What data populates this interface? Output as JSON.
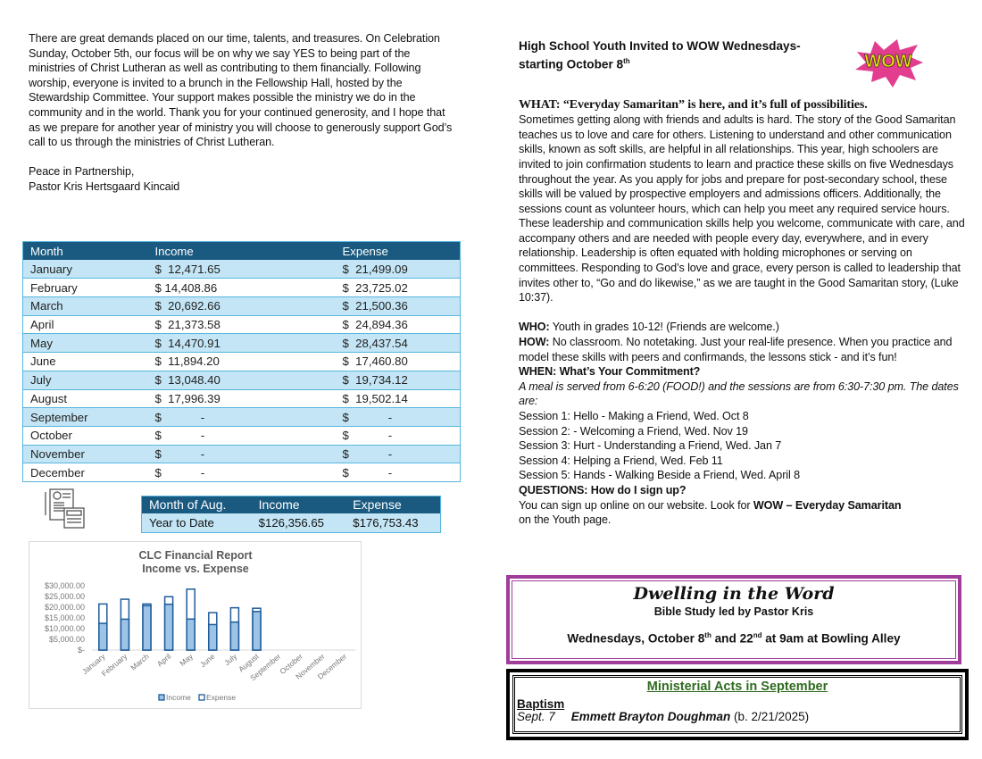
{
  "letter": {
    "para1": "There are great demands placed on our time, talents, and treasures. On Celebration Sunday, October 5th, our focus will be on why we say YES to being part of the ministries of Christ Lutheran as well as contributing to them financially.  Following worship, everyone is invited to a brunch in the Fellowship Hall, hosted by the Stewardship Committee. Your support makes possible the ministry we do in the community and in the world.  Thank you for your continued generosity, and I hope that as we prepare for another year of ministry you will choose to generously support God’s call to us through the ministries of Christ Lutheran.",
    "closing": "Peace in Partnership,",
    "signature": "Pastor Kris Hertsgaard Kincaid"
  },
  "finance_table": {
    "headers": [
      "Month",
      "Income",
      "Expense"
    ],
    "rows": [
      [
        "January",
        "$  12,471.65",
        "$  21,499.09"
      ],
      [
        "February",
        "$ 14,408.86",
        "$  23,725.02"
      ],
      [
        "March",
        "$  20,692.66",
        "$  21,500.36"
      ],
      [
        "April",
        "$  21,373.58",
        "$  24,894.36"
      ],
      [
        "May",
        "$  14,470.91",
        "$  28,437.54"
      ],
      [
        "June",
        "$  11,894.20",
        "$  17,460.80"
      ],
      [
        "July",
        "$  13,048.40",
        "$  19,734.12"
      ],
      [
        "August",
        "$  17,996.39",
        "$  19,502.14"
      ],
      [
        "September",
        "$            -",
        "$            -"
      ],
      [
        "October",
        "$            -",
        "$            -"
      ],
      [
        "November",
        "$            -",
        "$            -"
      ],
      [
        "December",
        "$            -",
        "$            -"
      ]
    ]
  },
  "ytd_table": {
    "headers": [
      "Month of Aug.",
      "Income",
      "Expense"
    ],
    "row": [
      "Year to Date",
      "$126,356.65",
      "$176,753.43"
    ]
  },
  "chart_data": {
    "type": "bar",
    "title": "CLC Financial Report",
    "subtitle": "Income vs. Expense",
    "categories": [
      "January",
      "February",
      "March",
      "April",
      "May",
      "June",
      "July",
      "August",
      "September",
      "October",
      "November",
      "December"
    ],
    "series": [
      {
        "name": "Income",
        "values": [
          12471.65,
          14408.86,
          20692.66,
          21373.58,
          14470.91,
          11894.2,
          13048.4,
          17996.39,
          0,
          0,
          0,
          0
        ],
        "color": "#9dc3e6"
      },
      {
        "name": "Expense",
        "values": [
          21499.09,
          23725.02,
          21500.36,
          24894.36,
          28437.54,
          17460.8,
          19734.12,
          19502.14,
          0,
          0,
          0,
          0
        ],
        "color": "#ffffff"
      }
    ],
    "yticks": [
      "$-",
      "$5,000.00",
      "$10,000.00",
      "$15,000.00",
      "$20,000.00",
      "$25,000.00",
      "$30,000.00"
    ],
    "ylim": [
      0,
      30000
    ],
    "legend": "bottom",
    "grid": false,
    "outline_color": "#1f5c99"
  },
  "youth": {
    "title_line1": "High School Youth Invited to WOW Wednesdays-",
    "title_line2": "starting October 8",
    "title_sup": "th",
    "logo_text": "WOW",
    "what": "WHAT: “Everyday Samaritan” is here, and it’s full of possibilities.",
    "what_body": "Sometimes getting along with friends and adults is hard.  The story of the Good Samaritan teaches us to love and care for others. Listening to understand and other communication skills, known as soft skills, are helpful in all relationships. This year, high schoolers are invited to join confirmation students to learn and practice these skills on five Wednesdays throughout the year. As you apply for jobs and prepare for post-secondary school, these skills will be valued by prospective employers and admissions officers. Additionally, the sessions count as volunteer hours, which can help you meet any required service hours.",
    "what_body2": "These leadership and communication skills help you welcome, communicate with care, and accompany others and are needed with people every day, everywhere, and in every relationship. Leadership is often equated with holding microphones or serving on committees. Responding to God’s love and grace, every person is called to leadership that invites other to, “Go and do likewise,” as we are taught in the Good Samaritan story, (Luke 10:37).",
    "who_label": "WHO:",
    "who": " Youth in grades 10-12! (Friends are welcome.)",
    "how_label": "HOW:",
    "how": " No classroom. No notetaking. Just your real-life presence. When you practice and model these skills with peers and confirmands, the lessons stick - and it’s fun!",
    "when_label": "WHEN: What’s Your Commitment?",
    "when_italic": "A meal is served from 6-6:20 (FOOD!) and the sessions are from 6:30-7:30 pm. The dates are:",
    "sessions": [
      "Session 1: Hello - Making a Friend, Wed. Oct 8",
      "Session 2: - Welcoming a Friend, Wed. Nov 19",
      "Session 3: Hurt - Understanding a Friend, Wed. Jan 7",
      "Session 4: Helping a Friend, Wed. Feb 11",
      "Session 5: Hands - Walking Beside a Friend, Wed. April 8"
    ],
    "questions_label": "QUESTIONS: How do I sign up?",
    "signup": "You can sign up online on our website. Look for ",
    "signup_bold": "WOW – Everyday Samaritan",
    "signup_end": "on the Youth page."
  },
  "dwelling": {
    "title": "Dwelling in the Word",
    "subtitle": "Bible Study led by Pastor Kris",
    "when_a": "Wednesdays, October 8",
    "sup1": "th",
    "when_b": " and 22",
    "sup2": "nd",
    "when_c": " at 9am at Bowling Alley",
    "border_color": "#a03c9a"
  },
  "acts": {
    "title": "Ministerial Acts in September",
    "title_color": "#2e6b1f",
    "category": "Baptism",
    "date": "Sept. 7",
    "name": "Emmett Brayton Doughman",
    "birth": " (b. 2/21/2025)"
  }
}
